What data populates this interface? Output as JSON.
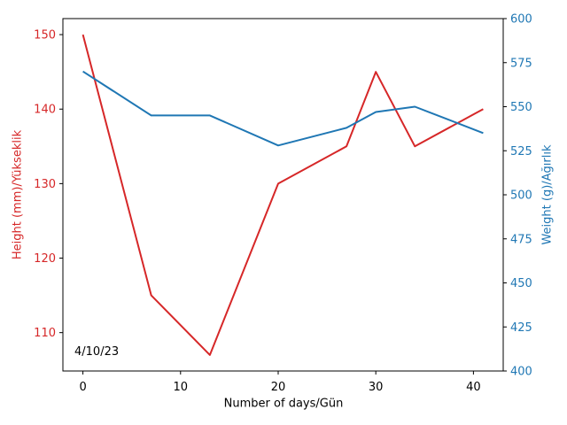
{
  "figure": {
    "background_color": "#ffffff",
    "spine_color": "#000000"
  },
  "chart_data": {
    "type": "line",
    "title": "",
    "xlabel": "Number of days/Gün",
    "x": [
      0,
      7,
      13,
      20,
      27,
      30,
      34,
      41
    ],
    "series": [
      {
        "name": "Height (mm)/Yükseklik",
        "axis": "left",
        "color": "#d62728",
        "values": [
          150,
          115,
          107,
          130,
          135,
          145,
          135,
          140
        ]
      },
      {
        "name": "Weight (g)/Ağırlık",
        "axis": "right",
        "color": "#1f77b4",
        "values": [
          570,
          545,
          545,
          528,
          538,
          547,
          550,
          535
        ]
      }
    ],
    "x_axis": {
      "ticks": [
        0,
        10,
        20,
        30,
        40
      ],
      "lim": [
        -2.05,
        43.05
      ],
      "color": "#000000"
    },
    "left_axis": {
      "label": "Height (mm)/Yükseklik",
      "color": "#d62728",
      "ticks": [
        110,
        120,
        130,
        140,
        150
      ],
      "lim": [
        104.85,
        152.15
      ]
    },
    "right_axis": {
      "label": "Weight (g)/Ağırlık",
      "color": "#1f77b4",
      "ticks": [
        400,
        425,
        450,
        475,
        500,
        525,
        550,
        575,
        600
      ],
      "lim": [
        400,
        600
      ]
    },
    "annotation": "4/10/23",
    "grid": false,
    "legend": "none"
  }
}
